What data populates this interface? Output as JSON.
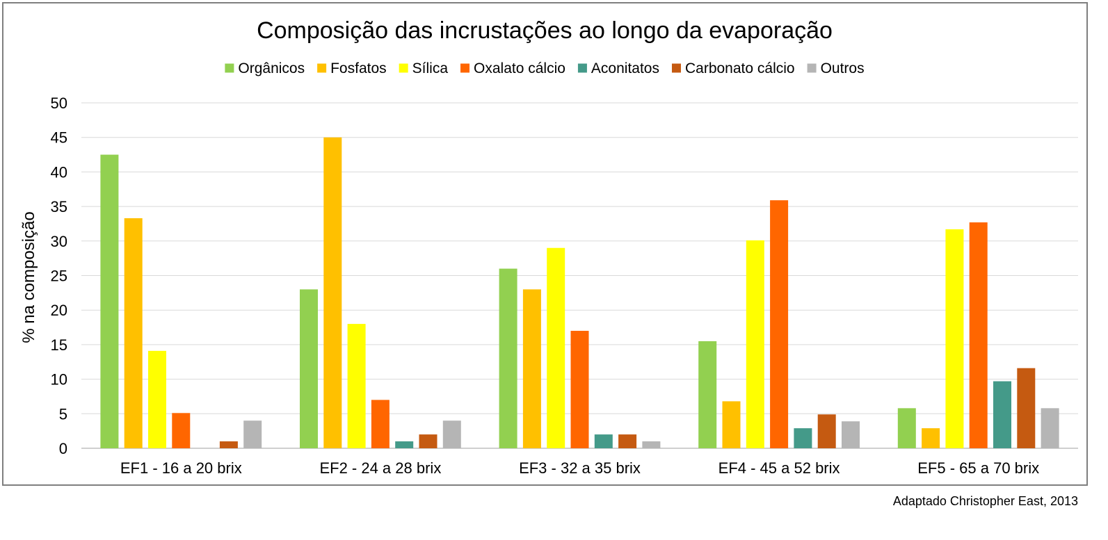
{
  "chart_data": {
    "type": "bar",
    "title": "Composição das incrustações ao longo da evaporação",
    "ylabel": "% na composição",
    "xlabel": "",
    "ylim": [
      0,
      50
    ],
    "yticks": [
      0,
      5,
      10,
      15,
      20,
      25,
      30,
      35,
      40,
      45,
      50
    ],
    "grid": true,
    "legend_position": "top",
    "categories": [
      "EF1 - 16 a 20 brix",
      "EF2 - 24 a 28 brix",
      "EF3 - 32 a 35 brix",
      "EF4 - 45 a 52 brix",
      "EF5 - 65 a 70 brix"
    ],
    "series": [
      {
        "name": "Orgânicos",
        "color": "#92d050",
        "values": [
          42.5,
          23,
          26,
          15.5,
          5.8
        ]
      },
      {
        "name": "Fosfatos",
        "color": "#ffc000",
        "values": [
          33.3,
          45,
          23,
          6.8,
          2.9
        ]
      },
      {
        "name": "Sílica",
        "color": "#ffff00",
        "values": [
          14.1,
          18,
          29,
          30.1,
          31.7
        ]
      },
      {
        "name": "Oxalato cálcio",
        "color": "#ff6600",
        "values": [
          5.1,
          7,
          17,
          35.9,
          32.7
        ]
      },
      {
        "name": "Aconitatos",
        "color": "#449a89",
        "values": [
          0,
          1,
          2,
          2.9,
          9.7
        ]
      },
      {
        "name": "Carbonato cálcio",
        "color": "#c55a11",
        "values": [
          1,
          2,
          2,
          4.9,
          11.6
        ]
      },
      {
        "name": "Outros",
        "color": "#b5b5b5",
        "values": [
          4,
          4,
          1,
          3.9,
          5.8
        ]
      }
    ]
  },
  "source_note": "Adaptado Christopher East, 2013"
}
